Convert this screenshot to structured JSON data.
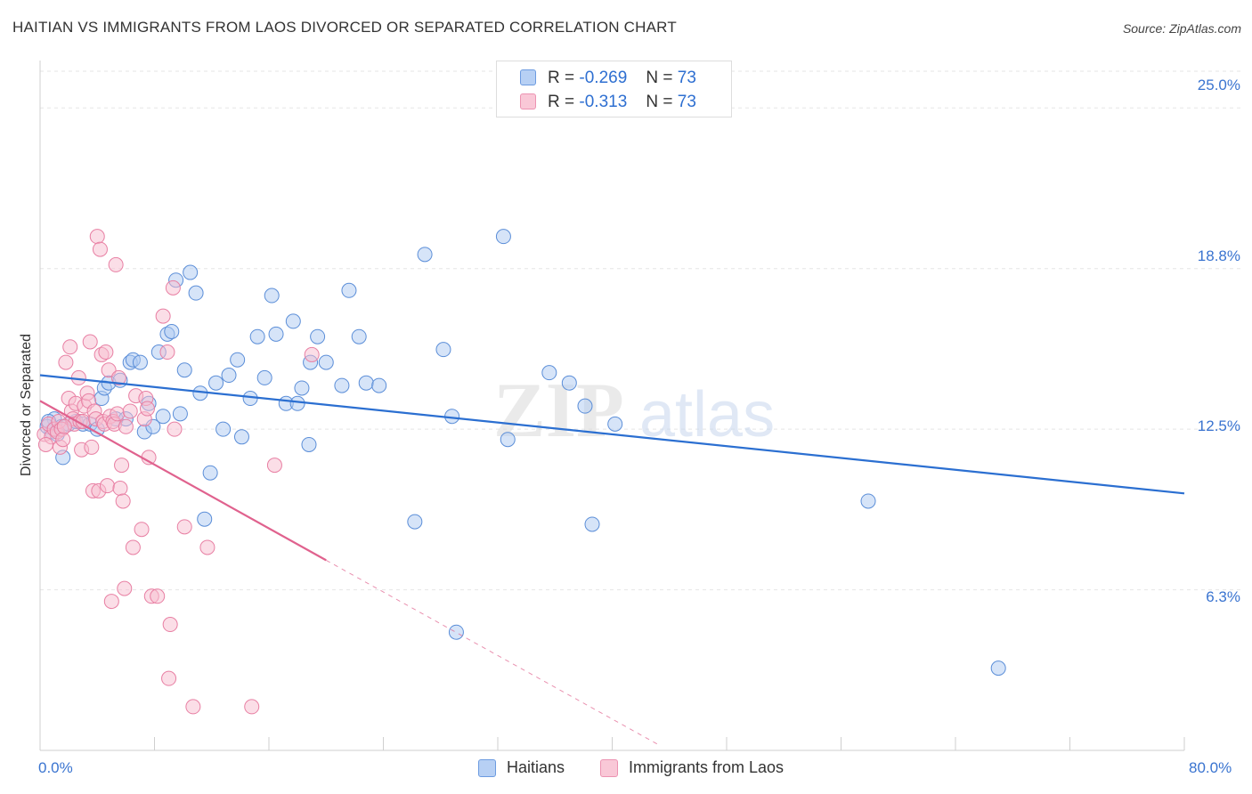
{
  "header": {
    "title": "HAITIAN VS IMMIGRANTS FROM LAOS DIVORCED OR SEPARATED CORRELATION CHART",
    "source": "Source: ZipAtlas.com"
  },
  "watermark": {
    "zip": "ZIP",
    "atlas": "atlas"
  },
  "legend_top": {
    "rows": [
      {
        "r_label": "R =",
        "r_value": "-0.269",
        "n_label": "N =",
        "n_value": "73"
      },
      {
        "r_label": "R =",
        "r_value": "-0.313",
        "n_label": "N =",
        "n_value": "73"
      }
    ]
  },
  "legend_bottom": {
    "items": [
      "Haitians",
      "Immigrants from Laos"
    ]
  },
  "colors": {
    "blue_fill": "#aec9f2",
    "blue_stroke": "#5b8ed8",
    "blue_line": "#2b6fd1",
    "pink_fill": "#f7bdd0",
    "pink_stroke": "#e87fa3",
    "pink_line": "#e0628e",
    "axis_text": "#3a74d0",
    "grid": "#e5e5e5"
  },
  "chart_data": {
    "type": "scatter",
    "title": "HAITIAN VS IMMIGRANTS FROM LAOS DIVORCED OR SEPARATED CORRELATION CHART",
    "xlabel": "",
    "ylabel": "Divorced or Separated",
    "xlim": [
      0,
      80
    ],
    "ylim": [
      0,
      26.5
    ],
    "y_ticks": [
      {
        "value": 6.25,
        "label": "6.3%"
      },
      {
        "value": 12.5,
        "label": "12.5%"
      },
      {
        "value": 18.75,
        "label": "18.8%"
      },
      {
        "value": 25.0,
        "label": "25.0%"
      }
    ],
    "x_tick_labels": {
      "min": "0.0%",
      "max": "80.0%"
    },
    "x_minor_ticks": [
      8,
      16,
      24,
      32,
      40,
      48,
      56,
      64,
      72,
      80
    ],
    "grid": true,
    "legend_position": "top-center",
    "series": [
      {
        "name": "Haitians",
        "color": "blue",
        "R": -0.269,
        "N": 73,
        "trend": {
          "x": [
            0,
            80
          ],
          "y": [
            14.6,
            10.0
          ],
          "dash_to": null
        },
        "points": [
          [
            1.0,
            12.9
          ],
          [
            1.5,
            12.6
          ],
          [
            0.8,
            12.4
          ],
          [
            0.5,
            12.6
          ],
          [
            2.0,
            12.7
          ],
          [
            1.6,
            11.4
          ],
          [
            2.5,
            12.8
          ],
          [
            3.0,
            12.7
          ],
          [
            3.5,
            12.7
          ],
          [
            4.0,
            12.5
          ],
          [
            4.3,
            13.7
          ],
          [
            4.5,
            14.1
          ],
          [
            4.8,
            14.3
          ],
          [
            5.3,
            12.9
          ],
          [
            5.6,
            14.4
          ],
          [
            6.0,
            12.9
          ],
          [
            6.3,
            15.1
          ],
          [
            6.5,
            15.2
          ],
          [
            7.0,
            15.1
          ],
          [
            7.3,
            12.4
          ],
          [
            7.6,
            13.5
          ],
          [
            7.9,
            12.6
          ],
          [
            8.3,
            15.5
          ],
          [
            8.6,
            13.0
          ],
          [
            8.9,
            16.2
          ],
          [
            9.2,
            16.3
          ],
          [
            9.5,
            18.3
          ],
          [
            9.8,
            13.1
          ],
          [
            10.1,
            14.8
          ],
          [
            10.5,
            18.6
          ],
          [
            10.9,
            17.8
          ],
          [
            11.2,
            13.9
          ],
          [
            11.9,
            10.8
          ],
          [
            11.5,
            9.0
          ],
          [
            12.3,
            14.3
          ],
          [
            12.8,
            12.5
          ],
          [
            13.2,
            14.6
          ],
          [
            13.8,
            15.2
          ],
          [
            14.1,
            12.2
          ],
          [
            14.7,
            13.7
          ],
          [
            15.2,
            16.1
          ],
          [
            15.7,
            14.5
          ],
          [
            16.2,
            17.7
          ],
          [
            16.5,
            16.2
          ],
          [
            17.2,
            13.5
          ],
          [
            17.7,
            16.7
          ],
          [
            18.0,
            13.5
          ],
          [
            18.3,
            14.1
          ],
          [
            18.8,
            11.9
          ],
          [
            18.9,
            15.1
          ],
          [
            19.4,
            16.1
          ],
          [
            20.0,
            15.1
          ],
          [
            21.1,
            14.2
          ],
          [
            21.6,
            17.9
          ],
          [
            22.3,
            16.1
          ],
          [
            22.8,
            14.3
          ],
          [
            23.7,
            14.2
          ],
          [
            26.2,
            8.9
          ],
          [
            26.9,
            19.3
          ],
          [
            28.2,
            15.6
          ],
          [
            28.8,
            13.0
          ],
          [
            29.1,
            4.6
          ],
          [
            32.4,
            20.0
          ],
          [
            32.7,
            12.1
          ],
          [
            35.6,
            14.7
          ],
          [
            37.0,
            14.3
          ],
          [
            38.1,
            13.4
          ],
          [
            38.6,
            8.8
          ],
          [
            40.2,
            12.7
          ],
          [
            57.9,
            9.7
          ],
          [
            67.0,
            3.2
          ],
          [
            0.6,
            12.8
          ],
          [
            1.2,
            12.3
          ]
        ]
      },
      {
        "name": "Immigrants from Laos",
        "color": "pink",
        "R": -0.313,
        "N": 73,
        "trend": {
          "x": [
            0,
            20
          ],
          "y": [
            13.6,
            7.4
          ],
          "dash_to": {
            "x": 43.3,
            "y": 0.2
          }
        },
        "points": [
          [
            0.3,
            12.3
          ],
          [
            0.6,
            12.7
          ],
          [
            0.8,
            12.2
          ],
          [
            1.0,
            12.5
          ],
          [
            1.2,
            12.4
          ],
          [
            1.3,
            12.8
          ],
          [
            1.4,
            11.8
          ],
          [
            1.5,
            12.5
          ],
          [
            1.6,
            12.1
          ],
          [
            1.8,
            15.1
          ],
          [
            2.0,
            13.7
          ],
          [
            2.1,
            15.7
          ],
          [
            2.2,
            13.2
          ],
          [
            2.3,
            12.9
          ],
          [
            2.4,
            12.7
          ],
          [
            2.5,
            13.5
          ],
          [
            2.7,
            14.5
          ],
          [
            2.8,
            12.8
          ],
          [
            2.9,
            11.7
          ],
          [
            3.0,
            12.8
          ],
          [
            3.1,
            13.4
          ],
          [
            3.3,
            13.9
          ],
          [
            3.4,
            13.6
          ],
          [
            3.5,
            15.9
          ],
          [
            3.6,
            11.8
          ],
          [
            3.7,
            10.1
          ],
          [
            3.8,
            13.2
          ],
          [
            3.9,
            12.9
          ],
          [
            4.0,
            20.0
          ],
          [
            4.1,
            10.1
          ],
          [
            4.2,
            19.5
          ],
          [
            4.3,
            15.4
          ],
          [
            4.4,
            12.8
          ],
          [
            4.5,
            12.7
          ],
          [
            4.6,
            15.5
          ],
          [
            4.7,
            10.3
          ],
          [
            4.8,
            14.8
          ],
          [
            4.9,
            13.0
          ],
          [
            5.0,
            5.8
          ],
          [
            5.1,
            12.8
          ],
          [
            5.2,
            12.7
          ],
          [
            5.3,
            18.9
          ],
          [
            5.4,
            13.1
          ],
          [
            5.5,
            14.5
          ],
          [
            5.6,
            10.2
          ],
          [
            5.7,
            11.1
          ],
          [
            5.8,
            9.7
          ],
          [
            5.9,
            6.3
          ],
          [
            6.0,
            12.6
          ],
          [
            6.3,
            13.2
          ],
          [
            6.5,
            7.9
          ],
          [
            6.7,
            13.8
          ],
          [
            7.1,
            8.6
          ],
          [
            7.3,
            12.9
          ],
          [
            7.4,
            13.7
          ],
          [
            7.5,
            13.3
          ],
          [
            7.6,
            11.4
          ],
          [
            7.8,
            6.0
          ],
          [
            8.2,
            6.0
          ],
          [
            8.6,
            16.9
          ],
          [
            8.9,
            15.5
          ],
          [
            9.0,
            2.8
          ],
          [
            9.1,
            4.9
          ],
          [
            9.3,
            18.0
          ],
          [
            9.4,
            12.5
          ],
          [
            10.1,
            8.7
          ],
          [
            10.7,
            1.7
          ],
          [
            11.7,
            7.9
          ],
          [
            14.8,
            1.7
          ],
          [
            16.4,
            11.1
          ],
          [
            19.0,
            15.4
          ],
          [
            0.4,
            11.9
          ],
          [
            1.7,
            12.6
          ]
        ]
      }
    ]
  }
}
